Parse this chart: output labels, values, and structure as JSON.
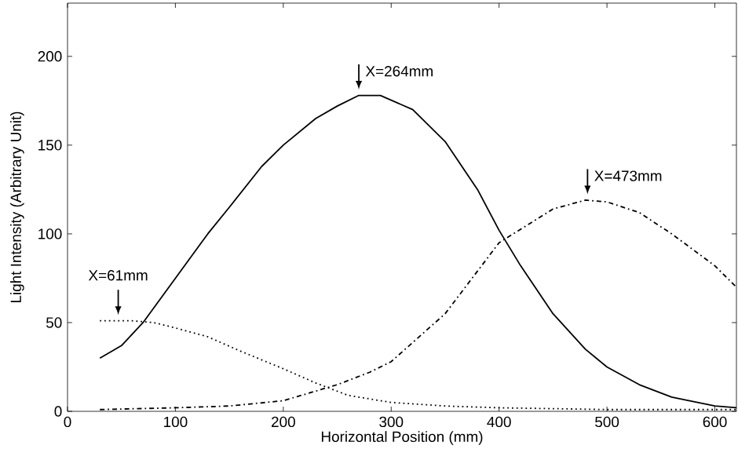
{
  "chart_data": {
    "type": "line",
    "xlabel": "Horizontal Position (mm)",
    "ylabel": "Light Intensity (Arbitrary Unit)",
    "xlim": [
      0,
      620
    ],
    "ylim": [
      0,
      230
    ],
    "xticks": [
      0,
      100,
      200,
      300,
      400,
      500,
      600
    ],
    "yticks": [
      0,
      50,
      100,
      150,
      200
    ],
    "grid": false,
    "marker": "none",
    "series": [
      {
        "color": "#000000",
        "line_style": "solid",
        "x": [
          30,
          50,
          70,
          100,
          130,
          150,
          180,
          200,
          230,
          250,
          270,
          290,
          320,
          350,
          380,
          400,
          420,
          450,
          480,
          500,
          530,
          560,
          600,
          620
        ],
        "values": [
          30,
          37,
          50,
          75,
          100,
          115,
          138,
          150,
          165,
          172,
          178,
          178,
          170,
          152,
          125,
          102,
          82,
          55,
          35,
          25,
          15,
          8,
          3,
          2
        ]
      },
      {
        "color": "#000000",
        "line_style": "dotted",
        "x": [
          30,
          60,
          80,
          100,
          130,
          160,
          200,
          230,
          260,
          300,
          350,
          400,
          500,
          620
        ],
        "values": [
          51,
          51,
          50,
          47,
          42,
          34,
          24,
          16,
          9,
          5,
          3,
          2,
          1,
          1
        ]
      },
      {
        "color": "#000000",
        "line_style": "dashed",
        "x": [
          30,
          100,
          150,
          200,
          250,
          280,
          300,
          350,
          400,
          450,
          480,
          500,
          530,
          560,
          600,
          620
        ],
        "values": [
          1,
          2,
          3,
          6,
          15,
          22,
          28,
          55,
          95,
          114,
          119,
          118,
          112,
          100,
          82,
          70
        ]
      }
    ],
    "annotations": [
      {
        "text": "X=61mm",
        "x": 47,
        "y": 52
      },
      {
        "text": "X=264mm",
        "x": 270,
        "y": 179
      },
      {
        "text": "X=473mm",
        "x": 482,
        "y": 120
      }
    ]
  }
}
